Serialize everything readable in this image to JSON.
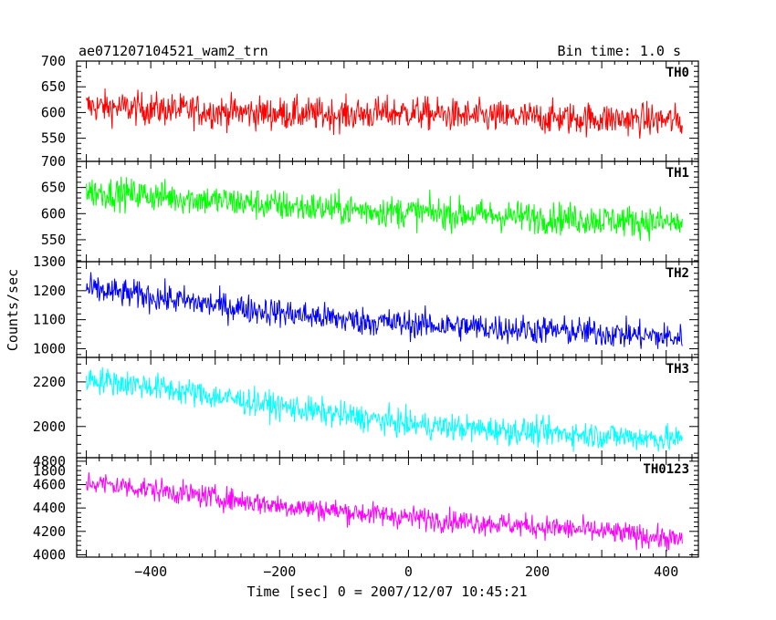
{
  "chart_data": {
    "type": "line",
    "title": "ae071207104521_wam2_trn",
    "bin_time_label": "Bin time: 1.0 s",
    "xlabel": "Time [sec] 0 = 2007/12/07 10:45:21",
    "ylabel": "Counts/sec",
    "xlim": [
      -515,
      450
    ],
    "x_ticks": [
      -400,
      -200,
      0,
      200,
      400
    ],
    "grid": false,
    "panels": [
      {
        "name": "TH0",
        "color": "#ff0000",
        "ylim": [
          505,
          700
        ],
        "y_ticks": [
          550,
          600,
          650,
          700
        ],
        "x": [
          -500,
          -400,
          -300,
          -200,
          -100,
          0,
          100,
          200,
          300,
          400,
          425
        ],
        "values": [
          612,
          607,
          602,
          598,
          596,
          600,
          592,
          590,
          588,
          585,
          583
        ],
        "spread": 42
      },
      {
        "name": "TH1",
        "color": "#00ff00",
        "ylim": [
          508,
          700
        ],
        "y_ticks": [
          550,
          600,
          650,
          700
        ],
        "x": [
          -500,
          -400,
          -300,
          -200,
          -100,
          0,
          100,
          200,
          300,
          400,
          425
        ],
        "values": [
          642,
          635,
          625,
          615,
          608,
          603,
          598,
          593,
          588,
          583,
          580
        ],
        "spread": 40
      },
      {
        "name": "TH2",
        "color": "#0000ff",
        "ylim": [
          970,
          1300
        ],
        "y_ticks": [
          1000,
          1100,
          1200,
          1300
        ],
        "x": [
          -500,
          -400,
          -300,
          -200,
          -100,
          0,
          100,
          200,
          300,
          400,
          425
        ],
        "values": [
          1205,
          1180,
          1150,
          1125,
          1100,
          1085,
          1075,
          1065,
          1055,
          1040,
          1035
        ],
        "spread": 65
      },
      {
        "name": "TH3",
        "color": "#00ffff",
        "ylim": [
          1860,
          2310
        ],
        "y_ticks": [
          1800,
          2000,
          2200
        ],
        "x": [
          -500,
          -400,
          -300,
          -200,
          -100,
          0,
          100,
          200,
          300,
          400,
          425
        ],
        "values": [
          2215,
          2180,
          2135,
          2090,
          2050,
          2010,
          1990,
          1975,
          1960,
          1945,
          1940
        ],
        "spread": 80
      },
      {
        "name": "TH0123",
        "color": "#ff00ff",
        "ylim": [
          3980,
          4830
        ],
        "y_ticks": [
          4000,
          4200,
          4400,
          4600,
          4800
        ],
        "x": [
          -500,
          -400,
          -300,
          -200,
          -100,
          0,
          100,
          200,
          300,
          400,
          425
        ],
        "values": [
          4620,
          4560,
          4490,
          4420,
          4370,
          4320,
          4280,
          4240,
          4200,
          4140,
          4120
        ],
        "spread": 130
      }
    ]
  }
}
